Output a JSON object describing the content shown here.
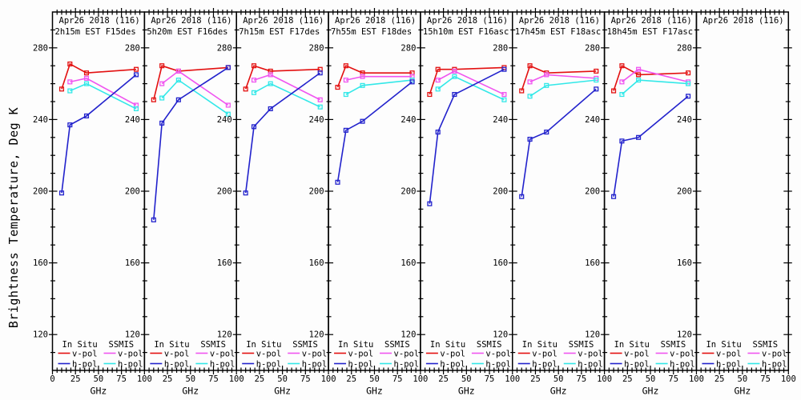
{
  "chart_data": {
    "type": "line",
    "layout": "small-multiples-8-panels",
    "title": "",
    "xlabel": "GHz",
    "ylabel": "Brightness Temperature, Deg K",
    "xlim": [
      0,
      100
    ],
    "ylim": [
      100,
      300
    ],
    "x_major_ticks": [
      0,
      25,
      50,
      75,
      100
    ],
    "x_minor_step": 5,
    "y_major_ticks": [
      120,
      160,
      200,
      240,
      280
    ],
    "y_minor_step": 10,
    "grid": false,
    "legend": {
      "position": "bottom-inside-each-panel",
      "insitu_header": "In Situ",
      "ssmis_header": "SSMIS",
      "vpol_label": "v-pol",
      "hpol_label": "h-pol"
    },
    "colors": {
      "insitu_v": "#e31010",
      "insitu_h": "#2222cc",
      "ssmis_v": "#f055f0",
      "ssmis_h": "#33e8e8",
      "axis": "#000000"
    },
    "frequencies_ghz": {
      "insitu": [
        10,
        19,
        37,
        91
      ],
      "ssmis": [
        19,
        37,
        91
      ]
    },
    "panels": [
      {
        "title1": "Apr26 2018 (116)",
        "title2": "2h15m EST F15des",
        "insitu_v": [
          257,
          271,
          266,
          268
        ],
        "insitu_h": [
          199,
          237,
          242,
          265
        ],
        "ssmis_v": [
          261,
          263,
          248
        ],
        "ssmis_h": [
          256,
          260,
          246
        ]
      },
      {
        "title1": "Apr26 2018 (116)",
        "title2": "5h20m EST F16des",
        "insitu_v": [
          251,
          270,
          267,
          269
        ],
        "insitu_h": [
          184,
          238,
          251,
          269
        ],
        "ssmis_v": [
          260,
          267,
          248
        ],
        "ssmis_h": [
          252,
          262,
          243
        ]
      },
      {
        "title1": "Apr26 2018 (116)",
        "title2": "7h15m EST F17des",
        "insitu_v": [
          257,
          270,
          267,
          268
        ],
        "insitu_h": [
          199,
          236,
          246,
          266
        ],
        "ssmis_v": [
          262,
          265,
          251
        ],
        "ssmis_h": [
          255,
          260,
          247
        ]
      },
      {
        "title1": "Apr26 2018 (116)",
        "title2": "7h55m EST F18des",
        "insitu_v": [
          258,
          270,
          266,
          266
        ],
        "insitu_h": [
          205,
          234,
          239,
          261
        ],
        "ssmis_v": [
          262,
          264,
          264
        ],
        "ssmis_h": [
          254,
          259,
          262
        ]
      },
      {
        "title1": "Apr26 2018 (116)",
        "title2": "15h10m EST F16asc",
        "insitu_v": [
          254,
          268,
          268,
          269
        ],
        "insitu_h": [
          193,
          233,
          254,
          268
        ],
        "ssmis_v": [
          262,
          267,
          254
        ],
        "ssmis_h": [
          257,
          264,
          251
        ]
      },
      {
        "title1": "Apr26 2018 (116)",
        "title2": "17h45m EST F18asc",
        "insitu_v": [
          256,
          270,
          266,
          267
        ],
        "insitu_h": [
          197,
          229,
          233,
          257
        ],
        "ssmis_v": [
          261,
          265,
          263
        ],
        "ssmis_h": [
          253,
          259,
          262
        ]
      },
      {
        "title1": "Apr26 2018 (116)",
        "title2": "18h45m EST F17asc",
        "insitu_v": [
          256,
          270,
          265,
          266
        ],
        "insitu_h": [
          197,
          228,
          230,
          253
        ],
        "ssmis_v": [
          261,
          268,
          261
        ],
        "ssmis_h": [
          254,
          262,
          260
        ]
      },
      {
        "title1": "Apr26 2018 (116)",
        "title2": "",
        "insitu_v": null,
        "insitu_h": null,
        "ssmis_v": null,
        "ssmis_h": null
      }
    ]
  }
}
